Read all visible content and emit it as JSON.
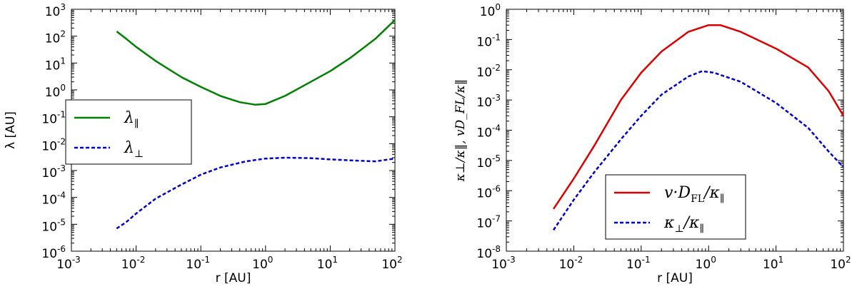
{
  "chart_data": [
    {
      "type": "line",
      "xscale": "log",
      "yscale": "log",
      "xlim": [
        0.001,
        100
      ],
      "ylim": [
        1e-06,
        1000
      ],
      "xlabel": "r [AU]",
      "ylabel": "λ [AU]",
      "x_ticks": [
        {
          "base": "10",
          "exp": "-3"
        },
        {
          "base": "10",
          "exp": "-2"
        },
        {
          "base": "10",
          "exp": "-1"
        },
        {
          "base": "10",
          "exp": "0"
        },
        {
          "base": "10",
          "exp": "1"
        },
        {
          "base": "10",
          "exp": "2"
        }
      ],
      "y_ticks": [
        {
          "base": "10",
          "exp": "-6"
        },
        {
          "base": "10",
          "exp": "-5"
        },
        {
          "base": "10",
          "exp": "-4"
        },
        {
          "base": "10",
          "exp": "-3"
        },
        {
          "base": "10",
          "exp": "-2"
        },
        {
          "base": "10",
          "exp": "-1"
        },
        {
          "base": "10",
          "exp": "0"
        },
        {
          "base": "10",
          "exp": "1"
        },
        {
          "base": "10",
          "exp": "2"
        },
        {
          "base": "10",
          "exp": "3"
        }
      ],
      "legend_position": "center-left",
      "grid": false,
      "series": [
        {
          "name": "λ‖",
          "legend_main": "λ",
          "legend_sub": "∥",
          "color": "#008000",
          "dash": "solid",
          "x": [
            0.005,
            0.007,
            0.01,
            0.02,
            0.05,
            0.1,
            0.2,
            0.4,
            0.7,
            1.0,
            2.0,
            5.0,
            10,
            20,
            50,
            100
          ],
          "y": [
            150,
            80,
            40,
            12,
            3,
            1.3,
            0.6,
            0.35,
            0.28,
            0.3,
            0.6,
            2.0,
            5,
            15,
            80,
            400
          ]
        },
        {
          "name": "λ⊥",
          "legend_main": "λ",
          "legend_sub": "⊥",
          "color": "#0000cc",
          "dash": "dashed",
          "x": [
            0.005,
            0.007,
            0.01,
            0.02,
            0.05,
            0.1,
            0.2,
            0.5,
            1.0,
            2.0,
            5.0,
            10,
            20,
            50,
            100
          ],
          "y": [
            7e-06,
            1.2e-05,
            2.5e-05,
            9e-05,
            0.0003,
            0.0007,
            0.0013,
            0.0022,
            0.0028,
            0.003,
            0.0029,
            0.0026,
            0.0024,
            0.0022,
            0.0028
          ]
        }
      ]
    },
    {
      "type": "line",
      "xscale": "log",
      "yscale": "log",
      "xlim": [
        0.001,
        100
      ],
      "ylim": [
        1e-08,
        1
      ],
      "xlabel": "r [AU]",
      "ylabel": "κ⊥/κ‖,  vD_FL/κ‖",
      "x_ticks": [
        {
          "base": "10",
          "exp": "-3"
        },
        {
          "base": "10",
          "exp": "-2"
        },
        {
          "base": "10",
          "exp": "-1"
        },
        {
          "base": "10",
          "exp": "0"
        },
        {
          "base": "10",
          "exp": "1"
        },
        {
          "base": "10",
          "exp": "2"
        }
      ],
      "y_ticks": [
        {
          "base": "10",
          "exp": "-8"
        },
        {
          "base": "10",
          "exp": "-7"
        },
        {
          "base": "10",
          "exp": "-6"
        },
        {
          "base": "10",
          "exp": "-5"
        },
        {
          "base": "10",
          "exp": "-4"
        },
        {
          "base": "10",
          "exp": "-3"
        },
        {
          "base": "10",
          "exp": "-2"
        },
        {
          "base": "10",
          "exp": "-1"
        },
        {
          "base": "10",
          "exp": "0"
        }
      ],
      "legend_position": "lower-right",
      "grid": false,
      "series": [
        {
          "name": "v·D_FL/κ‖",
          "legend_main": "v·D",
          "legend_sub": "FL",
          "legend_tail": "/κ",
          "legend_sub2": "∥",
          "color": "#dd0000",
          "dash": "solid",
          "x": [
            0.005,
            0.01,
            0.02,
            0.05,
            0.1,
            0.2,
            0.5,
            1.0,
            1.5,
            3,
            10,
            30,
            60,
            100
          ],
          "y": [
            2.5e-07,
            2.5e-06,
            3e-05,
            0.001,
            0.008,
            0.04,
            0.18,
            0.3,
            0.3,
            0.18,
            0.05,
            0.012,
            0.002,
            0.0003
          ]
        },
        {
          "name": "κ⊥/κ‖",
          "legend_main": "κ",
          "legend_sub": "⊥",
          "legend_tail": "/κ",
          "legend_sub2": "∥",
          "color": "#0000cc",
          "dash": "dashed",
          "x": [
            0.005,
            0.01,
            0.02,
            0.05,
            0.1,
            0.2,
            0.5,
            0.8,
            1.2,
            3,
            10,
            30,
            60,
            100
          ],
          "y": [
            5e-08,
            5e-07,
            4e-06,
            5e-05,
            0.0003,
            0.0015,
            0.006,
            0.009,
            0.008,
            0.004,
            0.0008,
            0.00012,
            2e-05,
            6e-06
          ]
        }
      ]
    }
  ]
}
